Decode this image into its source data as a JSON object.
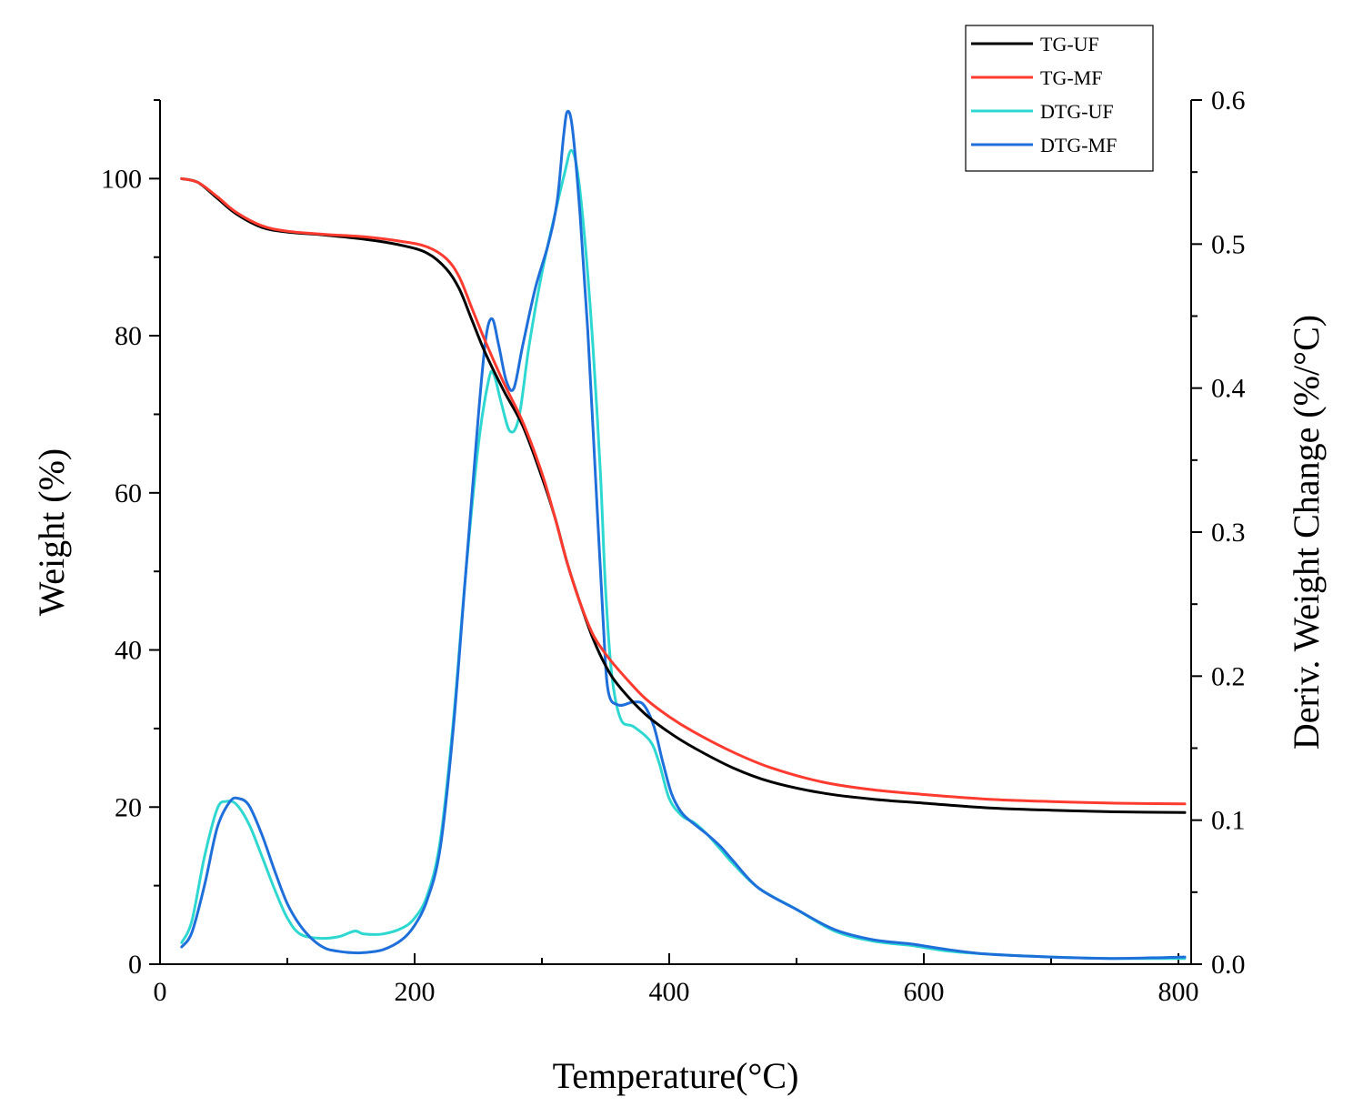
{
  "chart_data": {
    "type": "line",
    "title": "",
    "xlabel": "Temperature(°C)",
    "ylabel": "Weight (%)",
    "y2label": "Deriv. Weight Change (%/°C)",
    "xlim": [
      0,
      810
    ],
    "ylim": [
      0,
      110
    ],
    "y2lim": [
      0,
      0.6
    ],
    "grid": false,
    "legend_position": "top-right",
    "x_ticks": [
      "0",
      "200",
      "400",
      "600",
      "800"
    ],
    "y_ticks": [
      "0",
      "20",
      "40",
      "60",
      "80",
      "100"
    ],
    "y2_ticks": [
      "0.0",
      "0.1",
      "0.2",
      "0.3",
      "0.4",
      "0.5",
      "0.6"
    ],
    "series": [
      {
        "name": "TG-UF",
        "axis": "left",
        "color": "#000000",
        "points": [
          [
            17,
            100
          ],
          [
            30,
            99.5
          ],
          [
            45,
            97.5
          ],
          [
            60,
            95.5
          ],
          [
            80,
            93.8
          ],
          [
            100,
            93.2
          ],
          [
            130,
            92.8
          ],
          [
            160,
            92.3
          ],
          [
            190,
            91.5
          ],
          [
            210,
            90.5
          ],
          [
            225,
            88.5
          ],
          [
            235,
            86
          ],
          [
            245,
            82
          ],
          [
            255,
            78
          ],
          [
            270,
            73
          ],
          [
            285,
            68.5
          ],
          [
            300,
            62
          ],
          [
            310,
            57
          ],
          [
            320,
            51
          ],
          [
            330,
            46
          ],
          [
            340,
            41.5
          ],
          [
            350,
            38
          ],
          [
            360,
            35.5
          ],
          [
            380,
            32
          ],
          [
            400,
            29.5
          ],
          [
            420,
            27.5
          ],
          [
            450,
            25
          ],
          [
            480,
            23.2
          ],
          [
            520,
            21.8
          ],
          [
            560,
            21
          ],
          [
            600,
            20.5
          ],
          [
            650,
            19.9
          ],
          [
            700,
            19.6
          ],
          [
            750,
            19.4
          ],
          [
            805,
            19.3
          ]
        ]
      },
      {
        "name": "TG-MF",
        "axis": "left",
        "color": "#ff3b30",
        "points": [
          [
            17,
            100
          ],
          [
            30,
            99.5
          ],
          [
            45,
            97.7
          ],
          [
            60,
            95.7
          ],
          [
            80,
            94
          ],
          [
            100,
            93.3
          ],
          [
            130,
            92.9
          ],
          [
            160,
            92.6
          ],
          [
            190,
            92
          ],
          [
            210,
            91.3
          ],
          [
            225,
            89.8
          ],
          [
            235,
            87.5
          ],
          [
            245,
            83.5
          ],
          [
            255,
            79.5
          ],
          [
            270,
            74
          ],
          [
            285,
            69
          ],
          [
            300,
            62.5
          ],
          [
            310,
            57
          ],
          [
            320,
            51
          ],
          [
            330,
            46
          ],
          [
            340,
            42
          ],
          [
            350,
            39.5
          ],
          [
            360,
            37.5
          ],
          [
            380,
            34
          ],
          [
            400,
            31.5
          ],
          [
            420,
            29.5
          ],
          [
            450,
            27
          ],
          [
            480,
            25
          ],
          [
            520,
            23.2
          ],
          [
            560,
            22.2
          ],
          [
            600,
            21.6
          ],
          [
            650,
            21
          ],
          [
            700,
            20.7
          ],
          [
            750,
            20.5
          ],
          [
            805,
            20.4
          ]
        ]
      },
      {
        "name": "DTG-UF",
        "axis": "right",
        "color": "#2ed8d0",
        "points": [
          [
            17,
            0.015
          ],
          [
            25,
            0.03
          ],
          [
            35,
            0.075
          ],
          [
            45,
            0.108
          ],
          [
            52,
            0.113
          ],
          [
            60,
            0.111
          ],
          [
            70,
            0.097
          ],
          [
            80,
            0.075
          ],
          [
            90,
            0.052
          ],
          [
            100,
            0.032
          ],
          [
            110,
            0.021
          ],
          [
            125,
            0.018
          ],
          [
            140,
            0.019
          ],
          [
            153,
            0.023
          ],
          [
            160,
            0.021
          ],
          [
            175,
            0.021
          ],
          [
            190,
            0.025
          ],
          [
            200,
            0.032
          ],
          [
            210,
            0.048
          ],
          [
            220,
            0.085
          ],
          [
            230,
            0.165
          ],
          [
            240,
            0.27
          ],
          [
            250,
            0.36
          ],
          [
            258,
            0.405
          ],
          [
            262,
            0.41
          ],
          [
            268,
            0.39
          ],
          [
            275,
            0.37
          ],
          [
            282,
            0.38
          ],
          [
            290,
            0.43
          ],
          [
            300,
            0.48
          ],
          [
            310,
            0.52
          ],
          [
            318,
            0.55
          ],
          [
            323,
            0.565
          ],
          [
            328,
            0.55
          ],
          [
            334,
            0.5
          ],
          [
            340,
            0.43
          ],
          [
            346,
            0.34
          ],
          [
            350,
            0.26
          ],
          [
            355,
            0.2
          ],
          [
            362,
            0.17
          ],
          [
            372,
            0.165
          ],
          [
            385,
            0.155
          ],
          [
            392,
            0.14
          ],
          [
            400,
            0.115
          ],
          [
            410,
            0.103
          ],
          [
            420,
            0.098
          ],
          [
            430,
            0.09
          ],
          [
            440,
            0.08
          ],
          [
            450,
            0.07
          ],
          [
            470,
            0.053
          ],
          [
            500,
            0.038
          ],
          [
            530,
            0.023
          ],
          [
            560,
            0.016
          ],
          [
            590,
            0.013
          ],
          [
            620,
            0.009
          ],
          [
            650,
            0.007
          ],
          [
            700,
            0.005
          ],
          [
            750,
            0.004
          ],
          [
            805,
            0.004
          ]
        ]
      },
      {
        "name": "DTG-MF",
        "axis": "right",
        "color": "#1f6fdb",
        "points": [
          [
            17,
            0.012
          ],
          [
            25,
            0.022
          ],
          [
            35,
            0.055
          ],
          [
            45,
            0.095
          ],
          [
            55,
            0.113
          ],
          [
            62,
            0.115
          ],
          [
            70,
            0.11
          ],
          [
            80,
            0.09
          ],
          [
            90,
            0.065
          ],
          [
            100,
            0.042
          ],
          [
            110,
            0.027
          ],
          [
            120,
            0.017
          ],
          [
            130,
            0.011
          ],
          [
            140,
            0.009
          ],
          [
            150,
            0.008
          ],
          [
            160,
            0.008
          ],
          [
            175,
            0.01
          ],
          [
            190,
            0.017
          ],
          [
            200,
            0.027
          ],
          [
            210,
            0.045
          ],
          [
            220,
            0.08
          ],
          [
            230,
            0.16
          ],
          [
            240,
            0.27
          ],
          [
            250,
            0.38
          ],
          [
            256,
            0.435
          ],
          [
            261,
            0.448
          ],
          [
            266,
            0.43
          ],
          [
            272,
            0.405
          ],
          [
            278,
            0.4
          ],
          [
            285,
            0.43
          ],
          [
            295,
            0.47
          ],
          [
            305,
            0.5
          ],
          [
            312,
            0.53
          ],
          [
            317,
            0.575
          ],
          [
            320,
            0.592
          ],
          [
            324,
            0.58
          ],
          [
            330,
            0.52
          ],
          [
            336,
            0.44
          ],
          [
            342,
            0.34
          ],
          [
            348,
            0.24
          ],
          [
            352,
            0.19
          ],
          [
            360,
            0.18
          ],
          [
            372,
            0.182
          ],
          [
            380,
            0.18
          ],
          [
            388,
            0.165
          ],
          [
            395,
            0.14
          ],
          [
            402,
            0.118
          ],
          [
            410,
            0.105
          ],
          [
            420,
            0.097
          ],
          [
            430,
            0.09
          ],
          [
            440,
            0.082
          ],
          [
            450,
            0.072
          ],
          [
            470,
            0.053
          ],
          [
            500,
            0.038
          ],
          [
            530,
            0.024
          ],
          [
            560,
            0.017
          ],
          [
            590,
            0.014
          ],
          [
            620,
            0.01
          ],
          [
            650,
            0.007
          ],
          [
            700,
            0.005
          ],
          [
            750,
            0.004
          ],
          [
            805,
            0.005
          ]
        ]
      }
    ]
  }
}
